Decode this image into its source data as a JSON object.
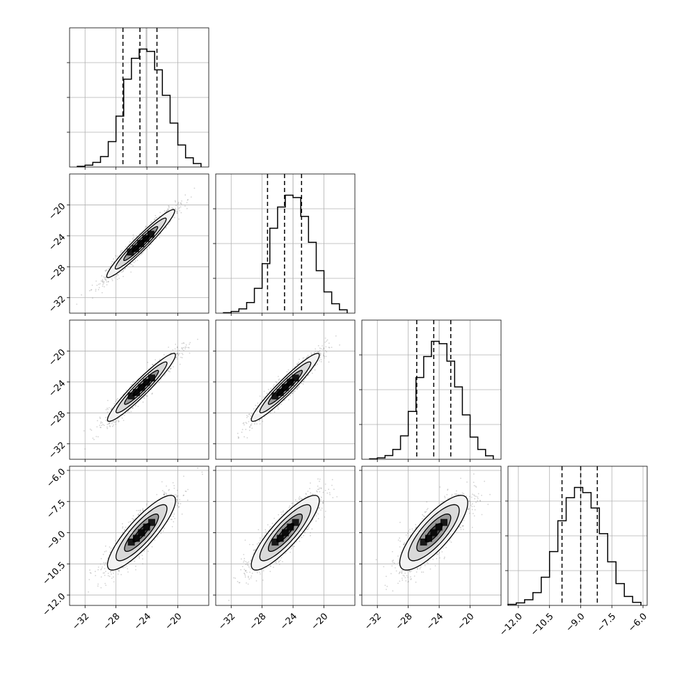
{
  "chart_data": {
    "type": "corner",
    "parameters": [
      {
        "range": [
          -34,
          -16
        ],
        "ticks": [
          -32,
          -28,
          -24,
          -20
        ],
        "tick_labels": [
          "−32",
          "−28",
          "−24",
          "−20"
        ],
        "median": -24.9,
        "q16": -27.1,
        "q84": -22.7,
        "truth": -24.1
      },
      {
        "range": [
          -34,
          -16
        ],
        "ticks": [
          -32,
          -28,
          -24,
          -20
        ],
        "tick_labels": [
          "−32",
          "−28",
          "−24",
          "−20"
        ],
        "median": -25.1,
        "q16": -27.3,
        "q84": -22.9,
        "truth": -24.0
      },
      {
        "range": [
          -34,
          -16
        ],
        "ticks": [
          -32,
          -28,
          -24,
          -20
        ],
        "tick_labels": [
          "−32",
          "−28",
          "−24",
          "−20"
        ],
        "median": -24.7,
        "q16": -26.9,
        "q84": -22.5,
        "truth": -24.0
      },
      {
        "range": [
          -12.5,
          -5.8
        ],
        "ticks": [
          -12.0,
          -10.5,
          -9.0,
          -7.5,
          -6.0
        ],
        "tick_labels": [
          "−12.0",
          "−10.5",
          "−9.0",
          "−7.5",
          "−6.0"
        ],
        "median": -9.0,
        "q16": -9.9,
        "q84": -8.2,
        "truth": -9.0
      }
    ],
    "diagonal_histograms": [
      {
        "bin_edges": [
          -33,
          -32,
          -31,
          -30,
          -29,
          -28,
          -27,
          -26,
          -25,
          -24,
          -23,
          -22,
          -21,
          -20,
          -19,
          -18,
          -17
        ],
        "counts": [
          3,
          8,
          20,
          45,
          110,
          220,
          380,
          470,
          510,
          500,
          420,
          310,
          190,
          95,
          40,
          15
        ]
      },
      {
        "bin_edges": [
          -33,
          -32,
          -31,
          -30,
          -29,
          -28,
          -27,
          -26,
          -25,
          -24,
          -23,
          -22,
          -21,
          -20,
          -19,
          -18,
          -17
        ],
        "counts": [
          2,
          7,
          18,
          45,
          105,
          210,
          360,
          450,
          500,
          490,
          410,
          300,
          180,
          90,
          40,
          14
        ]
      },
      {
        "bin_edges": [
          -33,
          -32,
          -31,
          -30,
          -29,
          -28,
          -27,
          -26,
          -25,
          -24,
          -23,
          -22,
          -21,
          -20,
          -19,
          -18,
          -17
        ],
        "counts": [
          2,
          6,
          16,
          42,
          100,
          205,
          350,
          440,
          505,
          495,
          420,
          310,
          190,
          95,
          42,
          15
        ]
      },
      {
        "bin_edges": [
          -12.5,
          -12.1,
          -11.7,
          -11.3,
          -10.9,
          -10.5,
          -10.1,
          -9.7,
          -9.3,
          -8.9,
          -8.5,
          -8.1,
          -7.7,
          -7.3,
          -6.9,
          -6.5,
          -6.1
        ],
        "counts": [
          4,
          10,
          22,
          50,
          110,
          210,
          330,
          420,
          460,
          440,
          380,
          280,
          170,
          85,
          35,
          12
        ]
      }
    ],
    "pair_ellipses": [
      {
        "row": 1,
        "col": 0,
        "center": [
          -24.8,
          -25.0
        ],
        "sd": [
          2.2,
          2.2
        ],
        "corr": 0.96
      },
      {
        "row": 2,
        "col": 0,
        "center": [
          -24.7,
          -24.7
        ],
        "sd": [
          2.2,
          2.2
        ],
        "corr": 0.95
      },
      {
        "row": 2,
        "col": 1,
        "center": [
          -25.0,
          -24.7
        ],
        "sd": [
          2.2,
          2.2
        ],
        "corr": 0.95
      },
      {
        "row": 3,
        "col": 0,
        "center": [
          -24.7,
          -9.0
        ],
        "sd": [
          2.2,
          0.9
        ],
        "corr": 0.86
      },
      {
        "row": 3,
        "col": 1,
        "center": [
          -25.0,
          -9.0
        ],
        "sd": [
          2.2,
          0.9
        ],
        "corr": 0.86
      },
      {
        "row": 3,
        "col": 2,
        "center": [
          -24.7,
          -9.0
        ],
        "sd": [
          2.2,
          0.9
        ],
        "corr": 0.8
      }
    ],
    "contour_levels_sigma": [
      0.5,
      1.0,
      1.5,
      2.0
    ],
    "grid": true,
    "colors": {
      "points": "#808080",
      "contour": "#000000",
      "hist": "#000000",
      "truth": "#b4b4b4",
      "density_dark": "#000000",
      "density_light": "#bfbfbf"
    }
  }
}
